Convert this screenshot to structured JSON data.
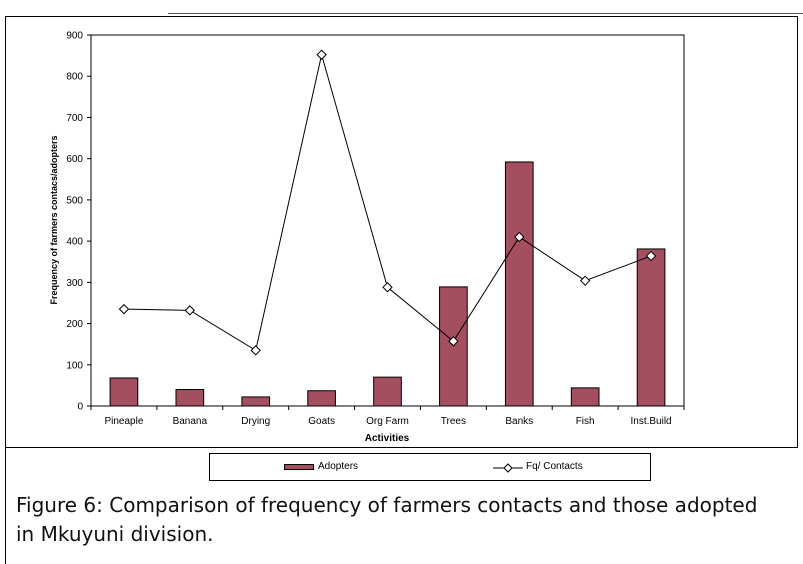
{
  "chart_data": {
    "type": "bar",
    "categories": [
      "Pineaple",
      "Banana",
      "Drying",
      "Goats",
      "Org Farm",
      "Trees",
      "Banks",
      "Fish",
      "Inst.Build"
    ],
    "series": [
      {
        "name": "Adopters",
        "type": "bar",
        "values": [
          68,
          40,
          22,
          37,
          70,
          289,
          592,
          44,
          381
        ],
        "color": "#a34f5f"
      },
      {
        "name": "Fq/ Contacts",
        "type": "line",
        "values": [
          235,
          232,
          135,
          852,
          288,
          157,
          410,
          304,
          364
        ],
        "color": "#000000",
        "marker": "diamond"
      }
    ],
    "xlabel": "Activities",
    "ylabel": "Frequency of farmers contacs/adopters",
    "ylim": [
      0,
      900
    ],
    "yticks": [
      0,
      100,
      200,
      300,
      400,
      500,
      600,
      700,
      800,
      900
    ],
    "grid": false,
    "legend_position": "bottom"
  },
  "legend": {
    "adopters_label": "Adopters",
    "contacts_label": "Fq/ Contacts"
  },
  "caption": "Figure 6: Comparison of frequency of farmers contacts and those adopted in Mkuyuni division."
}
